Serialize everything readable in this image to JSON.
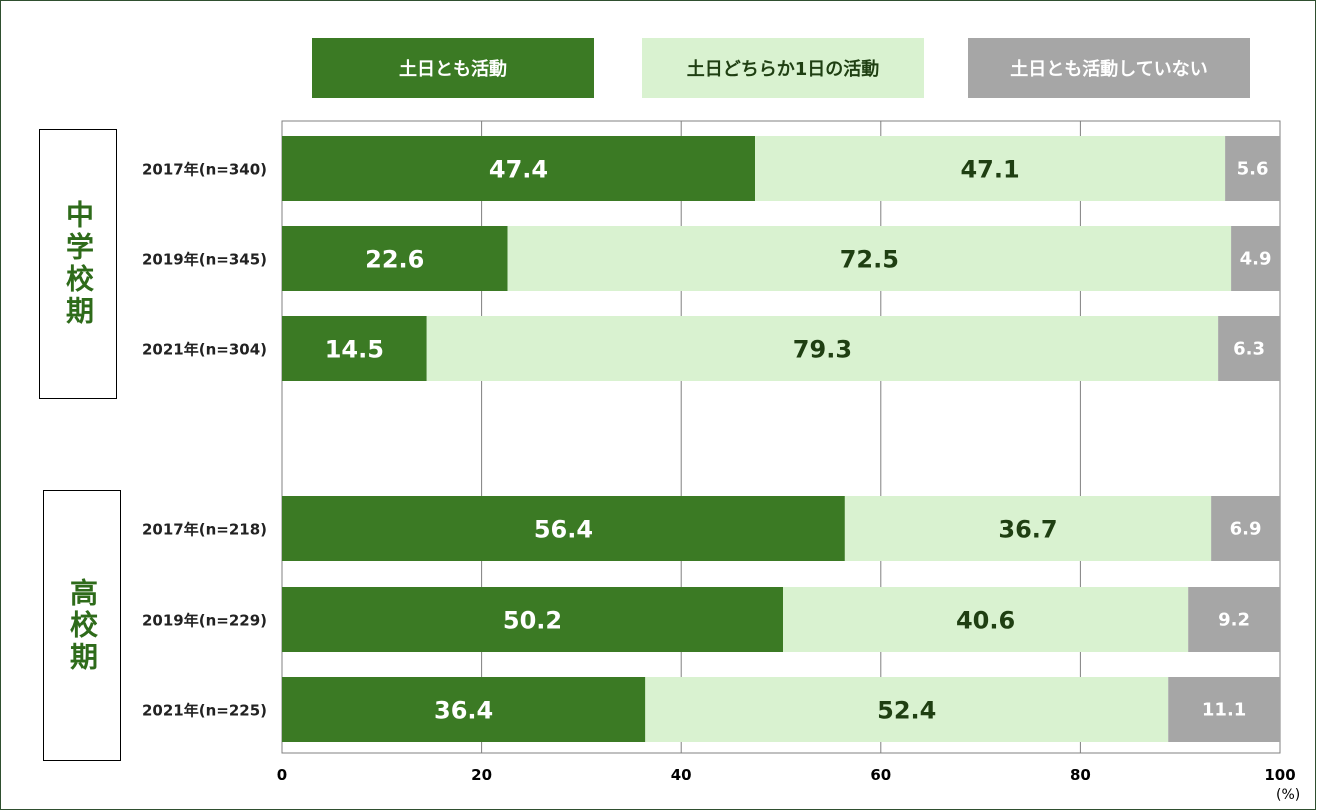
{
  "chart_data": {
    "type": "bar",
    "orientation": "horizontal",
    "stacked": true,
    "xlim": [
      0,
      100
    ],
    "x_ticks": [
      0,
      20,
      40,
      60,
      80,
      100
    ],
    "unit": "(%)",
    "legend_position": "top",
    "series": [
      {
        "name": "土日とも活動",
        "color": "#3b7a24",
        "label_color": "#ffffff"
      },
      {
        "name": "土日どちらか1日の活動",
        "color": "#d9f2d0",
        "label_color": "#1f3f12"
      },
      {
        "name": "土日とも活動していない",
        "color": "#a6a6a6",
        "label_color": "#ffffff"
      }
    ],
    "groups": [
      {
        "name": "中学校期",
        "rows": [
          {
            "label": "2017年(n=340)",
            "values": [
              47.4,
              47.1,
              5.6
            ]
          },
          {
            "label": "2019年(n=345)",
            "values": [
              22.6,
              72.5,
              4.9
            ]
          },
          {
            "label": "2021年(n=304)",
            "values": [
              14.5,
              79.3,
              6.3
            ]
          }
        ]
      },
      {
        "name": "高校期",
        "rows": [
          {
            "label": "2017年(n=218)",
            "values": [
              56.4,
              36.7,
              6.9
            ]
          },
          {
            "label": "2019年(n=229)",
            "values": [
              50.2,
              40.6,
              9.2
            ]
          },
          {
            "label": "2021年(n=225)",
            "values": [
              36.4,
              52.4,
              11.1
            ]
          }
        ]
      }
    ]
  }
}
